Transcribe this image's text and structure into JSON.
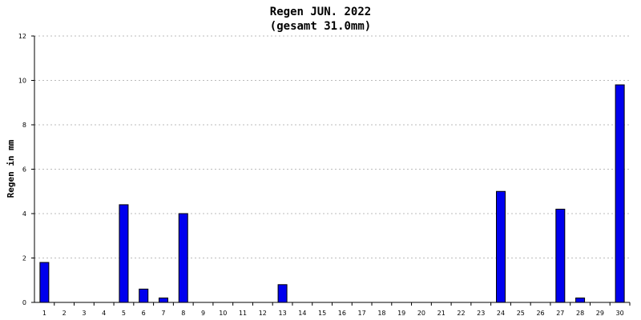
{
  "chart_data": {
    "type": "bar",
    "title": "Regen JUN. 2022",
    "subtitle": "(gesamt 31.0mm)",
    "ylabel": "Regen in mm",
    "xlabel": "",
    "ylim": [
      0,
      12
    ],
    "yticks": [
      "0",
      "2",
      "4",
      "6",
      "8",
      "10",
      "12"
    ],
    "grid": true,
    "categories": [
      "1",
      "2",
      "3",
      "4",
      "5",
      "6",
      "7",
      "8",
      "9",
      "10",
      "11",
      "12",
      "13",
      "14",
      "15",
      "16",
      "17",
      "18",
      "19",
      "20",
      "21",
      "22",
      "23",
      "24",
      "25",
      "26",
      "27",
      "28",
      "29",
      "30"
    ],
    "values": [
      1.8,
      0,
      0,
      0,
      4.4,
      0.6,
      0.2,
      4.0,
      0,
      0,
      0,
      0,
      0.8,
      0,
      0,
      0,
      0,
      0,
      0,
      0,
      0,
      0,
      0,
      5.0,
      0,
      0,
      4.2,
      0.2,
      0,
      9.8
    ],
    "bar_color": "#0000ee",
    "bar_border": "#000000",
    "grid_color": "#bbbbbb"
  }
}
